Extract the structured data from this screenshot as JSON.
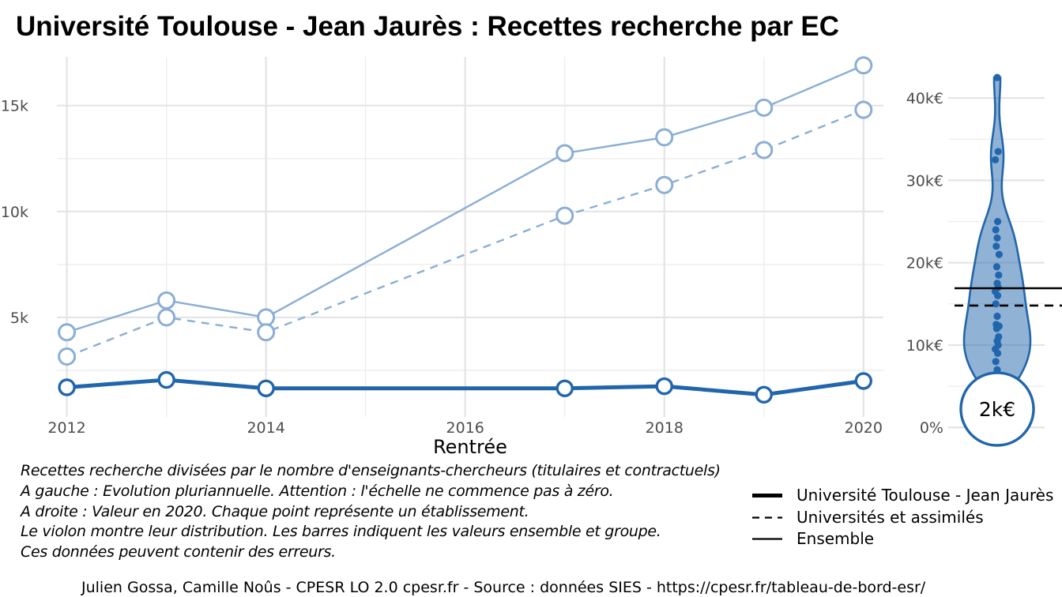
{
  "title": "Université Toulouse - Jean Jaurès  :  Recettes recherche par EC",
  "chart_data": [
    {
      "type": "line",
      "xlabel": "Rentrée",
      "ylabel": "",
      "x": [
        2012,
        2013,
        2014,
        2017,
        2018,
        2019,
        2020
      ],
      "xticks": [
        2012,
        2014,
        2016,
        2018,
        2020
      ],
      "xtick_labels": [
        "2012",
        "2014",
        "2016",
        "2018",
        "2020"
      ],
      "yticks": [
        5000,
        10000,
        15000
      ],
      "ytick_labels": [
        "5k",
        "10k",
        "15k"
      ],
      "xlim": [
        2011.9,
        2020.2
      ],
      "ylim": [
        300,
        17300
      ],
      "grid": true,
      "series": [
        {
          "name": "Ensemble",
          "style": "solid",
          "color": "#8aaed4",
          "values": [
            4300,
            5800,
            5000,
            12750,
            13500,
            14900,
            16900
          ]
        },
        {
          "name": "Universités et assimilés",
          "style": "dashed",
          "color": "#8aaed4",
          "values": [
            3150,
            5000,
            4300,
            9800,
            11250,
            12900,
            14800
          ]
        },
        {
          "name": "Université Toulouse - Jean Jaurès",
          "style": "solid-thick",
          "color": "#2166ac",
          "values": [
            1700,
            2050,
            1650,
            1650,
            1750,
            1350,
            2000
          ]
        }
      ]
    },
    {
      "type": "violin",
      "description_values_unit": "€",
      "yticks": [
        0,
        10000,
        20000,
        30000,
        40000
      ],
      "ytick_labels": [
        "0%",
        "10k€",
        "20k€",
        "30k€",
        "40k€"
      ],
      "ylim": [
        -1800,
        45000
      ],
      "color": "#2166ac",
      "points": [
        42500,
        33500,
        32500,
        25000,
        24000,
        23000,
        22000,
        21000,
        19500,
        18500,
        17500,
        17000,
        16500,
        16000,
        15000,
        13500,
        12500,
        12300,
        12000,
        11000,
        10500,
        10000,
        9500,
        9000,
        8000,
        7000,
        6500,
        6200,
        6000
      ],
      "reference_lines": [
        {
          "name": "Ensemble",
          "value": 16900,
          "style": "solid"
        },
        {
          "name": "Universités et assimilés",
          "value": 14800,
          "style": "dashed"
        }
      ],
      "highlight_value": 2000,
      "highlight_label": "2k€"
    }
  ],
  "caption_lines": [
    "Recettes recherche divisées par le nombre d'enseignants-chercheurs (titulaires et contractuels)",
    "A gauche : Evolution pluriannuelle. Attention : l'échelle ne commence pas à zéro.",
    "A droite : Valeur en 2020. Chaque point représente un établissement.",
    "Le violon montre leur distribution. Les barres indiquent les valeurs ensemble et groupe.",
    "Ces données peuvent contenir des erreurs."
  ],
  "legend": [
    {
      "label": "Université Toulouse - Jean Jaurès",
      "style": "thick"
    },
    {
      "label": "Universités et assimilés",
      "style": "dashed"
    },
    {
      "label": "Ensemble",
      "style": "solid"
    }
  ],
  "footer": "Julien Gossa, Camille Noûs - CPESR LO 2.0 cpesr.fr - Source : données SIES - https://cpesr.fr/tableau-de-bord-esr/"
}
